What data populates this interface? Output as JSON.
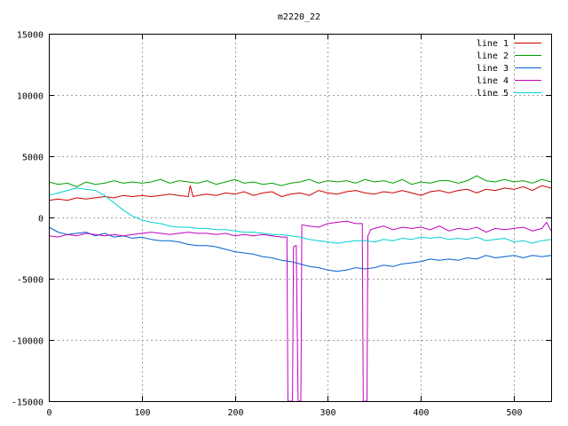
{
  "chart_data": {
    "type": "line",
    "title": "m2220_22",
    "xlabel": "",
    "ylabel": "",
    "xlim": [
      0,
      540
    ],
    "ylim": [
      -15000,
      15000
    ],
    "grid": true,
    "legend_position": "top-right",
    "x_ticks": [
      "0",
      "100",
      "200",
      "300",
      "400",
      "500"
    ],
    "x_tick_values": [
      0,
      100,
      200,
      300,
      400,
      500
    ],
    "y_ticks": [
      "15000",
      "10000",
      "5000",
      "0",
      "-5000",
      "-10000",
      "-15000"
    ],
    "y_tick_values": [
      15000,
      10000,
      5000,
      0,
      -5000,
      -10000,
      -15000
    ],
    "series": [
      {
        "name": "line 1",
        "color": "#cc0000",
        "points": [
          [
            0,
            1400
          ],
          [
            10,
            1500
          ],
          [
            20,
            1400
          ],
          [
            30,
            1600
          ],
          [
            40,
            1500
          ],
          [
            50,
            1600
          ],
          [
            60,
            1700
          ],
          [
            70,
            1600
          ],
          [
            80,
            1800
          ],
          [
            90,
            1700
          ],
          [
            100,
            1800
          ],
          [
            110,
            1700
          ],
          [
            120,
            1800
          ],
          [
            130,
            1900
          ],
          [
            140,
            1800
          ],
          [
            150,
            1700
          ],
          [
            152,
            2600
          ],
          [
            155,
            1700
          ],
          [
            160,
            1800
          ],
          [
            170,
            1900
          ],
          [
            180,
            1800
          ],
          [
            190,
            2000
          ],
          [
            200,
            1900
          ],
          [
            210,
            2100
          ],
          [
            220,
            1800
          ],
          [
            230,
            2000
          ],
          [
            240,
            2100
          ],
          [
            250,
            1700
          ],
          [
            260,
            1900
          ],
          [
            270,
            2000
          ],
          [
            280,
            1800
          ],
          [
            290,
            2200
          ],
          [
            300,
            2000
          ],
          [
            310,
            1900
          ],
          [
            320,
            2100
          ],
          [
            330,
            2200
          ],
          [
            340,
            2000
          ],
          [
            350,
            1900
          ],
          [
            360,
            2100
          ],
          [
            370,
            2000
          ],
          [
            380,
            2200
          ],
          [
            390,
            2000
          ],
          [
            400,
            1800
          ],
          [
            410,
            2100
          ],
          [
            420,
            2200
          ],
          [
            430,
            2000
          ],
          [
            440,
            2200
          ],
          [
            450,
            2300
          ],
          [
            460,
            2000
          ],
          [
            470,
            2300
          ],
          [
            480,
            2200
          ],
          [
            490,
            2400
          ],
          [
            500,
            2300
          ],
          [
            510,
            2500
          ],
          [
            520,
            2200
          ],
          [
            530,
            2600
          ],
          [
            540,
            2400
          ]
        ]
      },
      {
        "name": "line 2",
        "color": "#00a000",
        "points": [
          [
            0,
            2900
          ],
          [
            10,
            2700
          ],
          [
            20,
            2800
          ],
          [
            30,
            2500
          ],
          [
            40,
            2900
          ],
          [
            50,
            2700
          ],
          [
            60,
            2800
          ],
          [
            70,
            3000
          ],
          [
            80,
            2800
          ],
          [
            90,
            2900
          ],
          [
            100,
            2800
          ],
          [
            110,
            2900
          ],
          [
            120,
            3100
          ],
          [
            130,
            2800
          ],
          [
            140,
            3000
          ],
          [
            150,
            2900
          ],
          [
            160,
            2800
          ],
          [
            170,
            3000
          ],
          [
            180,
            2700
          ],
          [
            190,
            2900
          ],
          [
            200,
            3100
          ],
          [
            210,
            2800
          ],
          [
            220,
            2900
          ],
          [
            230,
            2700
          ],
          [
            240,
            2800
          ],
          [
            250,
            2600
          ],
          [
            260,
            2800
          ],
          [
            270,
            2900
          ],
          [
            280,
            3100
          ],
          [
            290,
            2800
          ],
          [
            300,
            3000
          ],
          [
            310,
            2900
          ],
          [
            320,
            3000
          ],
          [
            330,
            2800
          ],
          [
            340,
            3100
          ],
          [
            350,
            2900
          ],
          [
            360,
            3000
          ],
          [
            370,
            2800
          ],
          [
            380,
            3100
          ],
          [
            390,
            2700
          ],
          [
            400,
            2900
          ],
          [
            410,
            2800
          ],
          [
            420,
            3000
          ],
          [
            430,
            3000
          ],
          [
            440,
            2800
          ],
          [
            450,
            3000
          ],
          [
            460,
            3400
          ],
          [
            470,
            3000
          ],
          [
            480,
            2900
          ],
          [
            490,
            3100
          ],
          [
            500,
            2900
          ],
          [
            510,
            3000
          ],
          [
            520,
            2800
          ],
          [
            530,
            3100
          ],
          [
            540,
            2900
          ]
        ]
      },
      {
        "name": "line 3",
        "color": "#0060d0",
        "points": [
          [
            0,
            -800
          ],
          [
            10,
            -1200
          ],
          [
            20,
            -1400
          ],
          [
            30,
            -1300
          ],
          [
            40,
            -1200
          ],
          [
            50,
            -1500
          ],
          [
            60,
            -1300
          ],
          [
            70,
            -1600
          ],
          [
            80,
            -1500
          ],
          [
            90,
            -1700
          ],
          [
            100,
            -1600
          ],
          [
            110,
            -1800
          ],
          [
            120,
            -1900
          ],
          [
            130,
            -1900
          ],
          [
            140,
            -2000
          ],
          [
            150,
            -2200
          ],
          [
            160,
            -2300
          ],
          [
            170,
            -2300
          ],
          [
            180,
            -2400
          ],
          [
            190,
            -2600
          ],
          [
            200,
            -2800
          ],
          [
            210,
            -2900
          ],
          [
            220,
            -3000
          ],
          [
            230,
            -3200
          ],
          [
            240,
            -3300
          ],
          [
            250,
            -3500
          ],
          [
            260,
            -3600
          ],
          [
            270,
            -3800
          ],
          [
            280,
            -4000
          ],
          [
            290,
            -4100
          ],
          [
            300,
            -4300
          ],
          [
            310,
            -4400
          ],
          [
            320,
            -4300
          ],
          [
            330,
            -4100
          ],
          [
            340,
            -4200
          ],
          [
            350,
            -4100
          ],
          [
            360,
            -3900
          ],
          [
            370,
            -4000
          ],
          [
            380,
            -3800
          ],
          [
            390,
            -3700
          ],
          [
            400,
            -3600
          ],
          [
            410,
            -3400
          ],
          [
            420,
            -3500
          ],
          [
            430,
            -3400
          ],
          [
            440,
            -3500
          ],
          [
            450,
            -3300
          ],
          [
            460,
            -3400
          ],
          [
            470,
            -3100
          ],
          [
            480,
            -3300
          ],
          [
            490,
            -3200
          ],
          [
            500,
            -3100
          ],
          [
            510,
            -3300
          ],
          [
            520,
            -3100
          ],
          [
            530,
            -3200
          ],
          [
            540,
            -3100
          ]
        ]
      },
      {
        "name": "line 4",
        "color": "#c000c0",
        "points": [
          [
            0,
            -1500
          ],
          [
            10,
            -1600
          ],
          [
            20,
            -1400
          ],
          [
            30,
            -1500
          ],
          [
            40,
            -1300
          ],
          [
            50,
            -1400
          ],
          [
            60,
            -1500
          ],
          [
            70,
            -1400
          ],
          [
            80,
            -1500
          ],
          [
            90,
            -1400
          ],
          [
            100,
            -1300
          ],
          [
            110,
            -1200
          ],
          [
            120,
            -1300
          ],
          [
            130,
            -1400
          ],
          [
            140,
            -1300
          ],
          [
            150,
            -1200
          ],
          [
            160,
            -1300
          ],
          [
            170,
            -1300
          ],
          [
            180,
            -1400
          ],
          [
            190,
            -1300
          ],
          [
            200,
            -1500
          ],
          [
            210,
            -1400
          ],
          [
            220,
            -1500
          ],
          [
            230,
            -1400
          ],
          [
            240,
            -1500
          ],
          [
            250,
            -1600
          ],
          [
            256,
            -1600
          ],
          [
            257,
            -15000
          ],
          [
            262,
            -15000
          ],
          [
            263,
            -2400
          ],
          [
            266,
            -2300
          ],
          [
            268,
            -15000
          ],
          [
            271,
            -15000
          ],
          [
            272,
            -600
          ],
          [
            280,
            -700
          ],
          [
            290,
            -800
          ],
          [
            300,
            -500
          ],
          [
            310,
            -400
          ],
          [
            320,
            -300
          ],
          [
            330,
            -500
          ],
          [
            337,
            -500
          ],
          [
            338,
            -15000
          ],
          [
            342,
            -15000
          ],
          [
            343,
            -1500
          ],
          [
            346,
            -1000
          ],
          [
            350,
            -900
          ],
          [
            360,
            -700
          ],
          [
            370,
            -1000
          ],
          [
            380,
            -800
          ],
          [
            390,
            -900
          ],
          [
            400,
            -800
          ],
          [
            410,
            -1000
          ],
          [
            420,
            -700
          ],
          [
            430,
            -1100
          ],
          [
            440,
            -900
          ],
          [
            450,
            -1000
          ],
          [
            460,
            -800
          ],
          [
            470,
            -1200
          ],
          [
            480,
            -900
          ],
          [
            490,
            -1000
          ],
          [
            500,
            -900
          ],
          [
            510,
            -800
          ],
          [
            520,
            -1100
          ],
          [
            530,
            -900
          ],
          [
            535,
            -400
          ],
          [
            540,
            -1100
          ]
        ]
      },
      {
        "name": "line 5",
        "color": "#00d0d0",
        "points": [
          [
            0,
            1800
          ],
          [
            10,
            2000
          ],
          [
            20,
            2200
          ],
          [
            30,
            2400
          ],
          [
            40,
            2300
          ],
          [
            50,
            2200
          ],
          [
            60,
            1800
          ],
          [
            70,
            1200
          ],
          [
            80,
            600
          ],
          [
            90,
            100
          ],
          [
            100,
            -200
          ],
          [
            110,
            -400
          ],
          [
            120,
            -500
          ],
          [
            130,
            -700
          ],
          [
            140,
            -800
          ],
          [
            150,
            -800
          ],
          [
            160,
            -900
          ],
          [
            170,
            -900
          ],
          [
            180,
            -1000
          ],
          [
            190,
            -1000
          ],
          [
            200,
            -1100
          ],
          [
            210,
            -1200
          ],
          [
            220,
            -1200
          ],
          [
            230,
            -1300
          ],
          [
            240,
            -1400
          ],
          [
            250,
            -1400
          ],
          [
            260,
            -1500
          ],
          [
            270,
            -1600
          ],
          [
            280,
            -1800
          ],
          [
            290,
            -1900
          ],
          [
            300,
            -2000
          ],
          [
            310,
            -2100
          ],
          [
            320,
            -2000
          ],
          [
            330,
            -1900
          ],
          [
            340,
            -1900
          ],
          [
            350,
            -2000
          ],
          [
            360,
            -1800
          ],
          [
            370,
            -1900
          ],
          [
            380,
            -1700
          ],
          [
            390,
            -1800
          ],
          [
            400,
            -1600
          ],
          [
            410,
            -1700
          ],
          [
            420,
            -1600
          ],
          [
            430,
            -1800
          ],
          [
            440,
            -1700
          ],
          [
            450,
            -1800
          ],
          [
            460,
            -1600
          ],
          [
            470,
            -1900
          ],
          [
            480,
            -1800
          ],
          [
            490,
            -1700
          ],
          [
            500,
            -2000
          ],
          [
            510,
            -1900
          ],
          [
            520,
            -2100
          ],
          [
            530,
            -1900
          ],
          [
            540,
            -1800
          ]
        ]
      }
    ]
  }
}
